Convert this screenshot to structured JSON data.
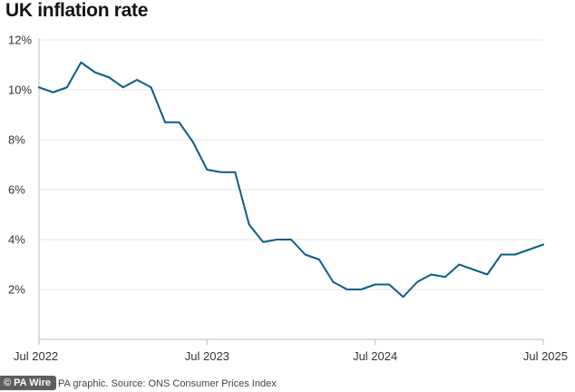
{
  "title": "UK inflation rate",
  "footer": {
    "badge": "© PA Wire",
    "source": "PA graphic. Source: ONS Consumer Prices Index"
  },
  "chart_data": {
    "type": "line",
    "title": "UK inflation rate",
    "xlabel": "",
    "ylabel": "",
    "x_start": "2022-07",
    "x_end": "2025-07",
    "x_ticks": [
      {
        "date": "2022-07",
        "label": "Jul 2022"
      },
      {
        "date": "2023-07",
        "label": "Jul 2023"
      },
      {
        "date": "2024-07",
        "label": "Jul 2024"
      },
      {
        "date": "2025-07",
        "label": "Jul 2025"
      }
    ],
    "y_ticks": [
      {
        "value": 2,
        "label": "2%"
      },
      {
        "value": 4,
        "label": "4%"
      },
      {
        "value": 6,
        "label": "6%"
      },
      {
        "value": 8,
        "label": "8%"
      },
      {
        "value": 10,
        "label": "10%"
      },
      {
        "value": 12,
        "label": "12%"
      }
    ],
    "ylim": [
      0,
      12
    ],
    "grid": "horizontal",
    "line_color": "#0b5d8a",
    "x": [
      "2022-07",
      "2022-08",
      "2022-09",
      "2022-10",
      "2022-11",
      "2022-12",
      "2023-01",
      "2023-02",
      "2023-03",
      "2023-04",
      "2023-05",
      "2023-06",
      "2023-07",
      "2023-08",
      "2023-09",
      "2023-10",
      "2023-11",
      "2023-12",
      "2024-01",
      "2024-02",
      "2024-03",
      "2024-04",
      "2024-05",
      "2024-06",
      "2024-07",
      "2024-08",
      "2024-09",
      "2024-10",
      "2024-11",
      "2024-12",
      "2025-01",
      "2025-02",
      "2025-03",
      "2025-04",
      "2025-05",
      "2025-06",
      "2025-07"
    ],
    "values": [
      10.1,
      9.9,
      10.1,
      11.1,
      10.7,
      10.5,
      10.1,
      10.4,
      10.1,
      8.7,
      8.7,
      7.9,
      6.8,
      6.7,
      6.7,
      4.6,
      3.9,
      4.0,
      4.0,
      3.4,
      3.2,
      2.3,
      2.0,
      2.0,
      2.2,
      2.2,
      1.7,
      2.3,
      2.6,
      2.5,
      3.0,
      2.8,
      2.6,
      3.4,
      3.4,
      3.6,
      3.8
    ]
  }
}
